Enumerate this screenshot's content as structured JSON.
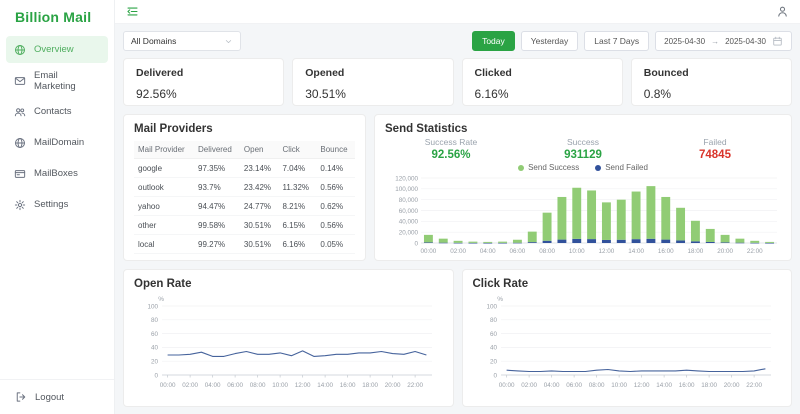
{
  "brand": {
    "name": "Billion Mail",
    "color": "#2aa344"
  },
  "colors": {
    "accent_green": "#2aa344",
    "active_item_bg": "#e9f7ec",
    "active_item_text": "#4fae5f",
    "success_green": "#91cc75",
    "failed_navy": "#31519b",
    "failed_red": "#d9342b",
    "line_blue": "#46639c"
  },
  "sidebar": {
    "items": [
      {
        "label": "Overview",
        "icon": "overview-icon",
        "active": true
      },
      {
        "label": "Email Marketing",
        "icon": "email-marketing-icon",
        "active": false
      },
      {
        "label": "Contacts",
        "icon": "contacts-icon",
        "active": false
      },
      {
        "label": "MailDomain",
        "icon": "domain-icon",
        "active": false
      },
      {
        "label": "MailBoxes",
        "icon": "mailbox-icon",
        "active": false
      },
      {
        "label": "Settings",
        "icon": "settings-icon",
        "active": false
      }
    ],
    "logout_label": "Logout"
  },
  "filters": {
    "domain_select": "All Domains",
    "range_buttons": [
      "Today",
      "Yesterday",
      "Last 7 Days"
    ],
    "active_range": "Today",
    "date_from": "2025-04-30",
    "date_to": "2025-04-30"
  },
  "stat_cards": [
    {
      "label": "Delivered",
      "value": "92.56%"
    },
    {
      "label": "Opened",
      "value": "30.51%"
    },
    {
      "label": "Clicked",
      "value": "6.16%"
    },
    {
      "label": "Bounced",
      "value": "0.8%"
    }
  ],
  "mail_providers": {
    "title": "Mail Providers",
    "columns": [
      "Mail Provider",
      "Delivered",
      "Open",
      "Click",
      "Bounce"
    ],
    "rows": [
      [
        "google",
        "97.35%",
        "23.14%",
        "7.04%",
        "0.14%"
      ],
      [
        "outlook",
        "93.7%",
        "23.42%",
        "11.32%",
        "0.56%"
      ],
      [
        "yahoo",
        "94.47%",
        "24.77%",
        "8.21%",
        "0.62%"
      ],
      [
        "other",
        "99.58%",
        "30.51%",
        "6.15%",
        "0.56%"
      ],
      [
        "local",
        "99.27%",
        "30.51%",
        "6.16%",
        "0.05%"
      ]
    ]
  },
  "send_statistics": {
    "title": "Send Statistics",
    "metrics": [
      {
        "label": "Success Rate",
        "value": "92.56%",
        "color": "#2aa344"
      },
      {
        "label": "Success",
        "value": "931129",
        "color": "#2aa344"
      },
      {
        "label": "Failed",
        "value": "74845",
        "color": "#d9342b"
      }
    ]
  },
  "open_rate": {
    "title": "Open Rate"
  },
  "click_rate": {
    "title": "Click Rate"
  },
  "chart_data": [
    {
      "id": "send-stats",
      "type": "bar",
      "stacked": true,
      "title": "Send Statistics",
      "categories": [
        "00:00",
        "01:00",
        "02:00",
        "03:00",
        "04:00",
        "05:00",
        "06:00",
        "07:00",
        "08:00",
        "09:00",
        "10:00",
        "11:00",
        "12:00",
        "13:00",
        "14:00",
        "15:00",
        "16:00",
        "17:00",
        "18:00",
        "19:00",
        "20:00",
        "21:00",
        "22:00",
        "23:00"
      ],
      "x_label_every": 2,
      "series": [
        {
          "name": "Send Failed",
          "color": "#31519b",
          "values": [
            1100,
            600,
            300,
            200,
            150,
            200,
            450,
            1600,
            4200,
            6300,
            7600,
            7200,
            5600,
            6000,
            7100,
            7800,
            6300,
            4800,
            3000,
            1900,
            1100,
            600,
            300,
            150
          ]
        },
        {
          "name": "Send Success",
          "color": "#91cc75",
          "values": [
            13900,
            7400,
            3700,
            2300,
            1850,
            2300,
            5550,
            19400,
            51800,
            78700,
            94400,
            89800,
            69400,
            74000,
            87900,
            97200,
            78700,
            60200,
            38000,
            24100,
            13900,
            7400,
            3700,
            1850
          ]
        }
      ],
      "legend": [
        {
          "name": "Send Success",
          "color": "#91cc75"
        },
        {
          "name": "Send Failed",
          "color": "#31519b"
        }
      ],
      "legend_position": "top",
      "grid": true,
      "ylim": [
        0,
        120000
      ],
      "ytick_step": 20000
    },
    {
      "id": "open-rate",
      "type": "line",
      "title": "Open Rate",
      "ylabel": "%",
      "categories": [
        "00:00",
        "01:00",
        "02:00",
        "03:00",
        "04:00",
        "05:00",
        "06:00",
        "07:00",
        "08:00",
        "09:00",
        "10:00",
        "11:00",
        "12:00",
        "13:00",
        "14:00",
        "15:00",
        "16:00",
        "17:00",
        "18:00",
        "19:00",
        "20:00",
        "21:00",
        "22:00",
        "23:00"
      ],
      "x_label_every": 2,
      "values": [
        29,
        29,
        30,
        33,
        27,
        27,
        31,
        34,
        30,
        30,
        32,
        28,
        35,
        27,
        28,
        30,
        30,
        32,
        32,
        34,
        31,
        30,
        34,
        29
      ],
      "line_color": "#46639c",
      "grid": true,
      "ylim": [
        0,
        100
      ],
      "ytick_step": 20
    },
    {
      "id": "click-rate",
      "type": "line",
      "title": "Click Rate",
      "ylabel": "%",
      "categories": [
        "00:00",
        "01:00",
        "02:00",
        "03:00",
        "04:00",
        "05:00",
        "06:00",
        "07:00",
        "08:00",
        "09:00",
        "10:00",
        "11:00",
        "12:00",
        "13:00",
        "14:00",
        "15:00",
        "16:00",
        "17:00",
        "18:00",
        "19:00",
        "20:00",
        "21:00",
        "22:00",
        "23:00"
      ],
      "x_label_every": 2,
      "values": [
        7,
        6,
        5,
        5,
        6,
        5,
        5,
        5,
        7,
        8,
        6,
        5,
        6,
        6,
        6,
        6,
        7,
        6,
        5,
        5,
        5,
        5,
        6,
        9
      ],
      "line_color": "#46639c",
      "grid": true,
      "ylim": [
        0,
        100
      ],
      "ytick_step": 20
    }
  ]
}
